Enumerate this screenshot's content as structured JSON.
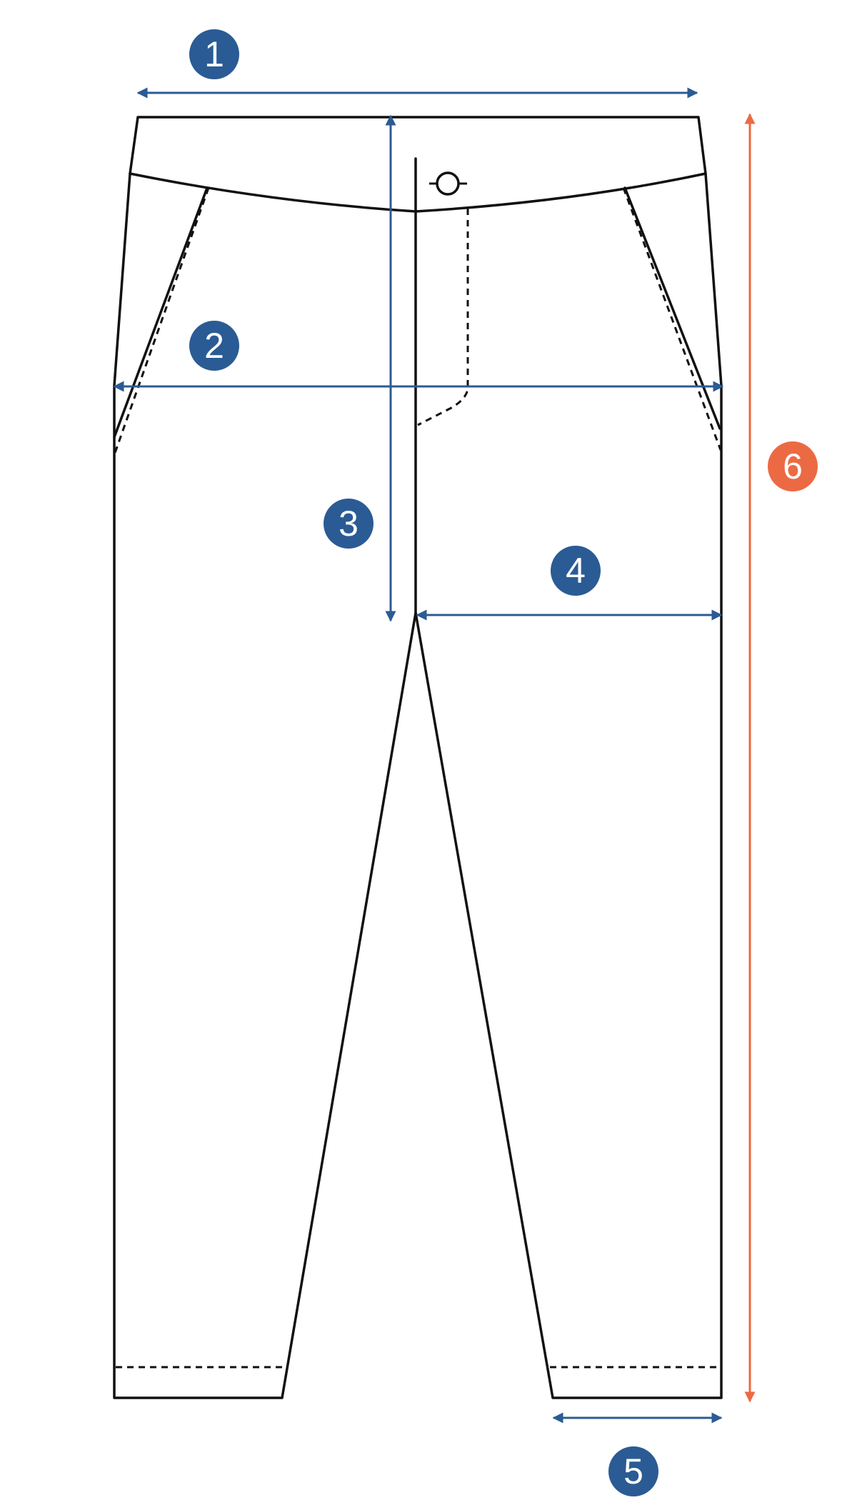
{
  "colors": {
    "outline": "#111111",
    "dimension_blue": "#2b5b94",
    "dimension_orange": "#ec6a43",
    "background": "#ffffff"
  },
  "markers": [
    {
      "id": "1",
      "label": "1",
      "color": "#2b5b94"
    },
    {
      "id": "2",
      "label": "2",
      "color": "#2b5b94"
    },
    {
      "id": "3",
      "label": "3",
      "color": "#2b5b94"
    },
    {
      "id": "4",
      "label": "4",
      "color": "#2b5b94"
    },
    {
      "id": "5",
      "label": "5",
      "color": "#2b5b94"
    },
    {
      "id": "6",
      "label": "6",
      "color": "#ec6a43"
    }
  ]
}
